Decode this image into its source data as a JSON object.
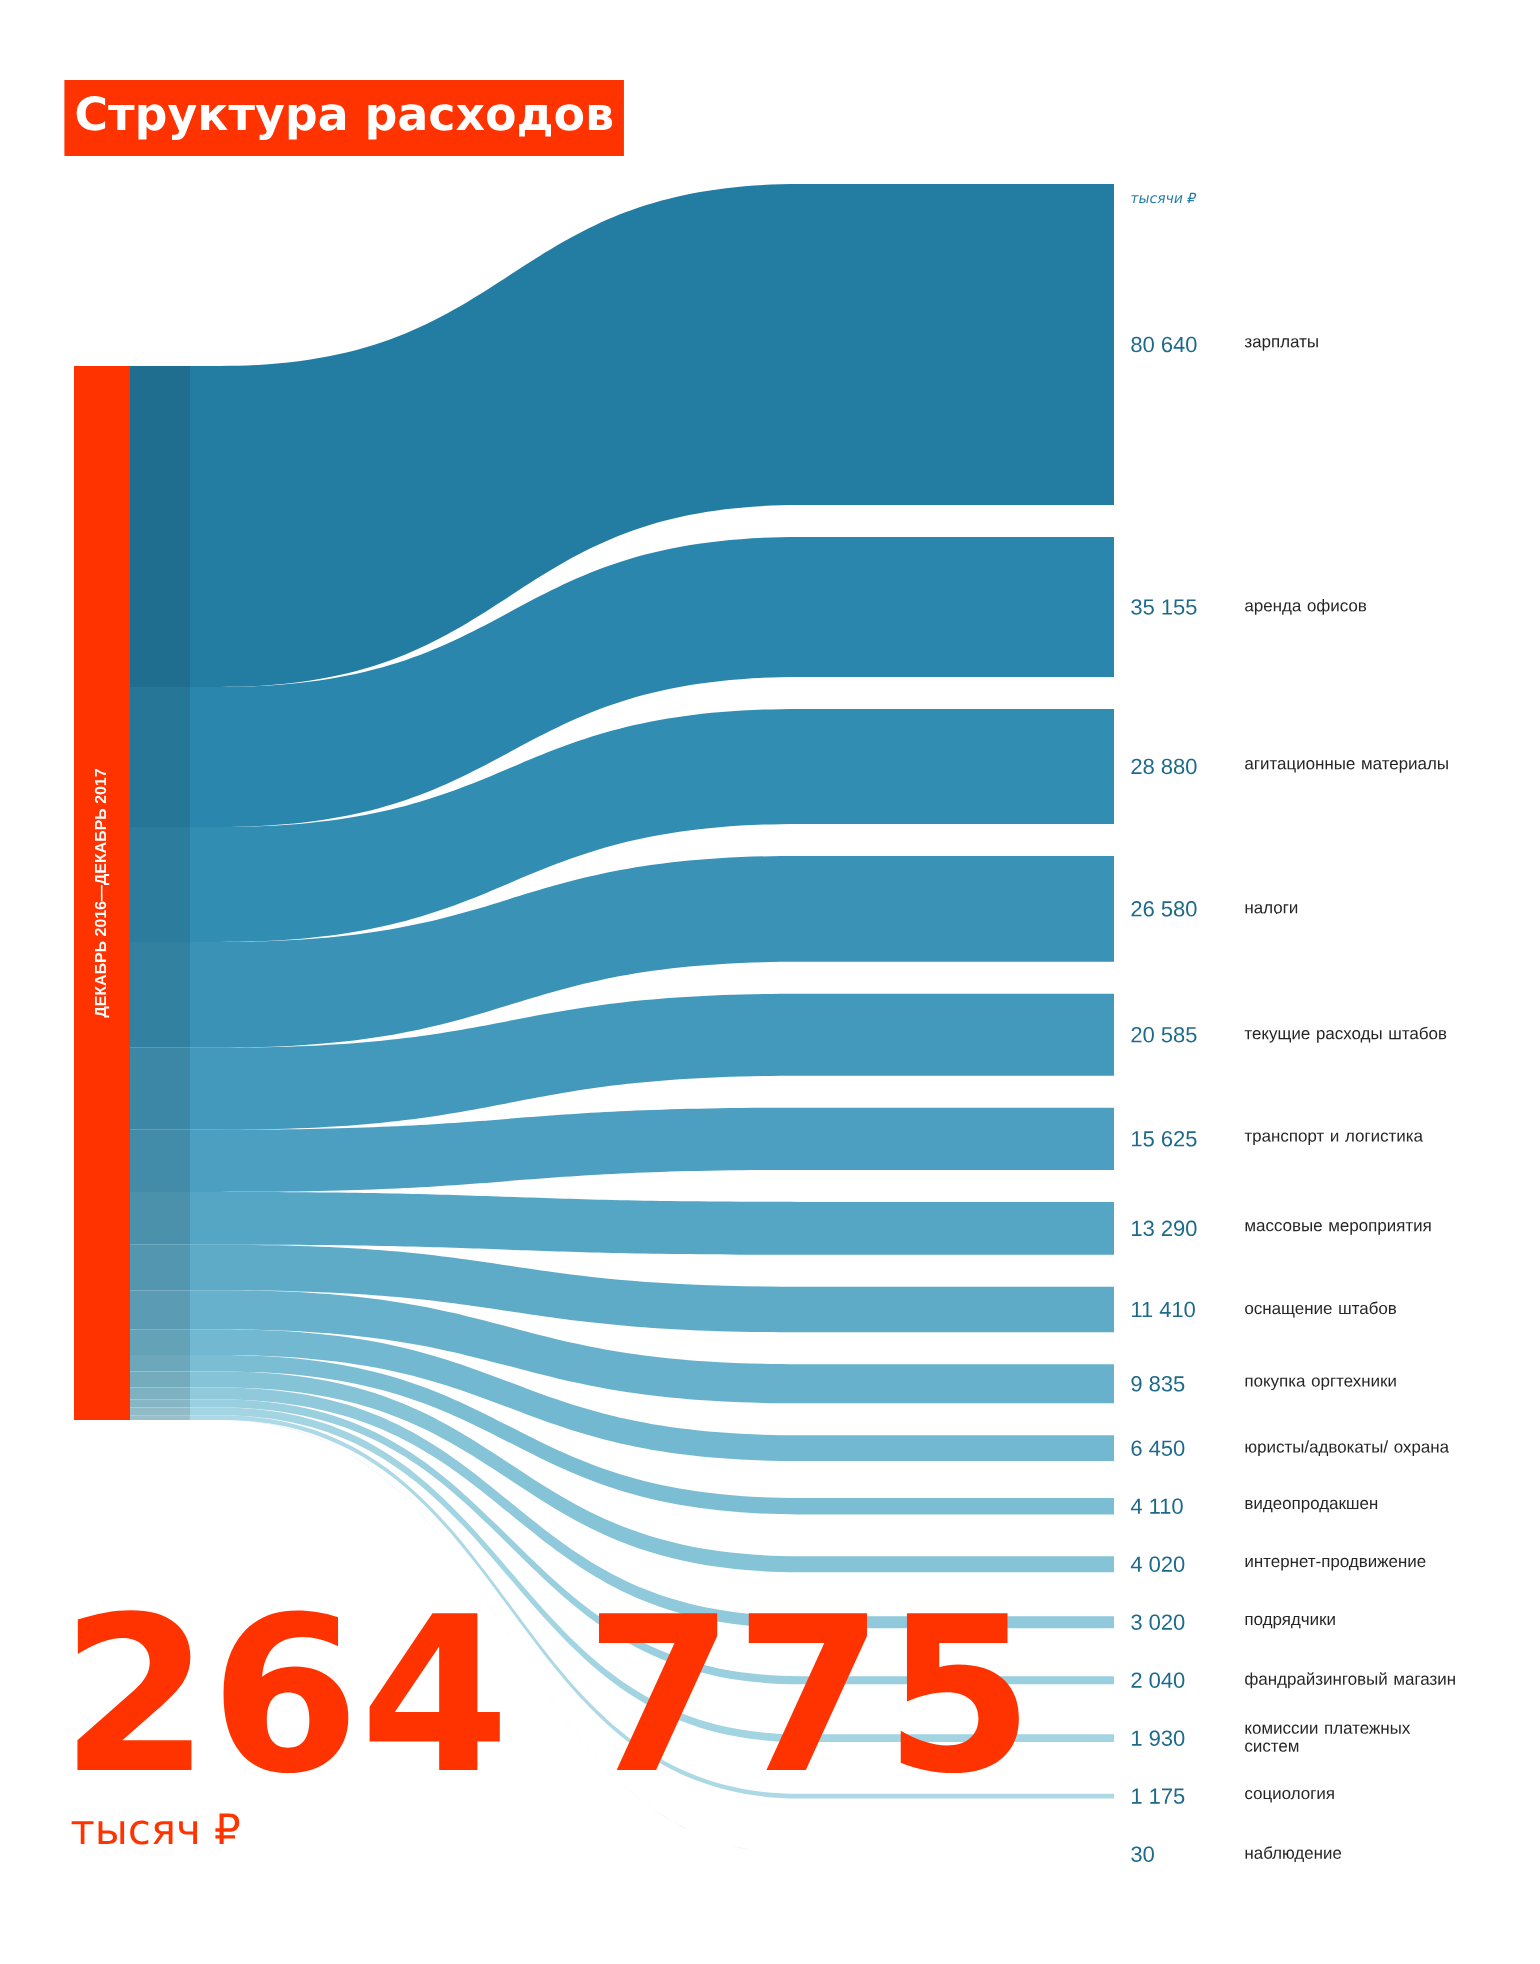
{
  "chart_data": {
    "type": "other",
    "title": "Структура расходов",
    "categories": [
      "зарплаты",
      "аренда офисов",
      "агитационные материалы",
      "налоги",
      "текущие расходы штабов",
      "транспорт и логистика",
      "массовые мероприятия",
      "оснащение штабов",
      "покупка оргтехники",
      "юристы/адвокаты/ охрана",
      "видеопродакшен",
      "интернет-продвижение",
      "подрядчики",
      "фандрайзинговый магазин",
      "комиссии платежных систем",
      "социология",
      "наблюдение"
    ],
    "values": [
      80640,
      35155,
      28880,
      26580,
      20585,
      15625,
      13290,
      11410,
      9835,
      6450,
      4110,
      4020,
      3020,
      2040,
      1930,
      1175,
      30
    ],
    "value_labels": [
      "80 640",
      "35 155",
      "28 880",
      "26 580",
      "20 585",
      "15 625",
      "13 290",
      "11 410",
      "9 835",
      "6 450",
      "4 110",
      "4 020",
      "3 020",
      "2 040",
      "1 930",
      "1 175",
      "30"
    ],
    "colors": [
      "#237da3",
      "#2a86ac",
      "#318db2",
      "#3a93b7",
      "#4399bc",
      "#4c9fc0",
      "#55a5c4",
      "#5eabc8",
      "#67b1cc",
      "#71b8d0",
      "#7bbed4",
      "#85c3d7",
      "#8fc9db",
      "#99cfdf",
      "#a3d4e2",
      "#add9e6",
      "#b7deea"
    ],
    "annotations": [
      "тысячи ₽",
      "ДЕКАБРЬ 2016—ДЕКАБРЬ 2017",
      "264 775",
      "тысяч ₽"
    ]
  }
}
